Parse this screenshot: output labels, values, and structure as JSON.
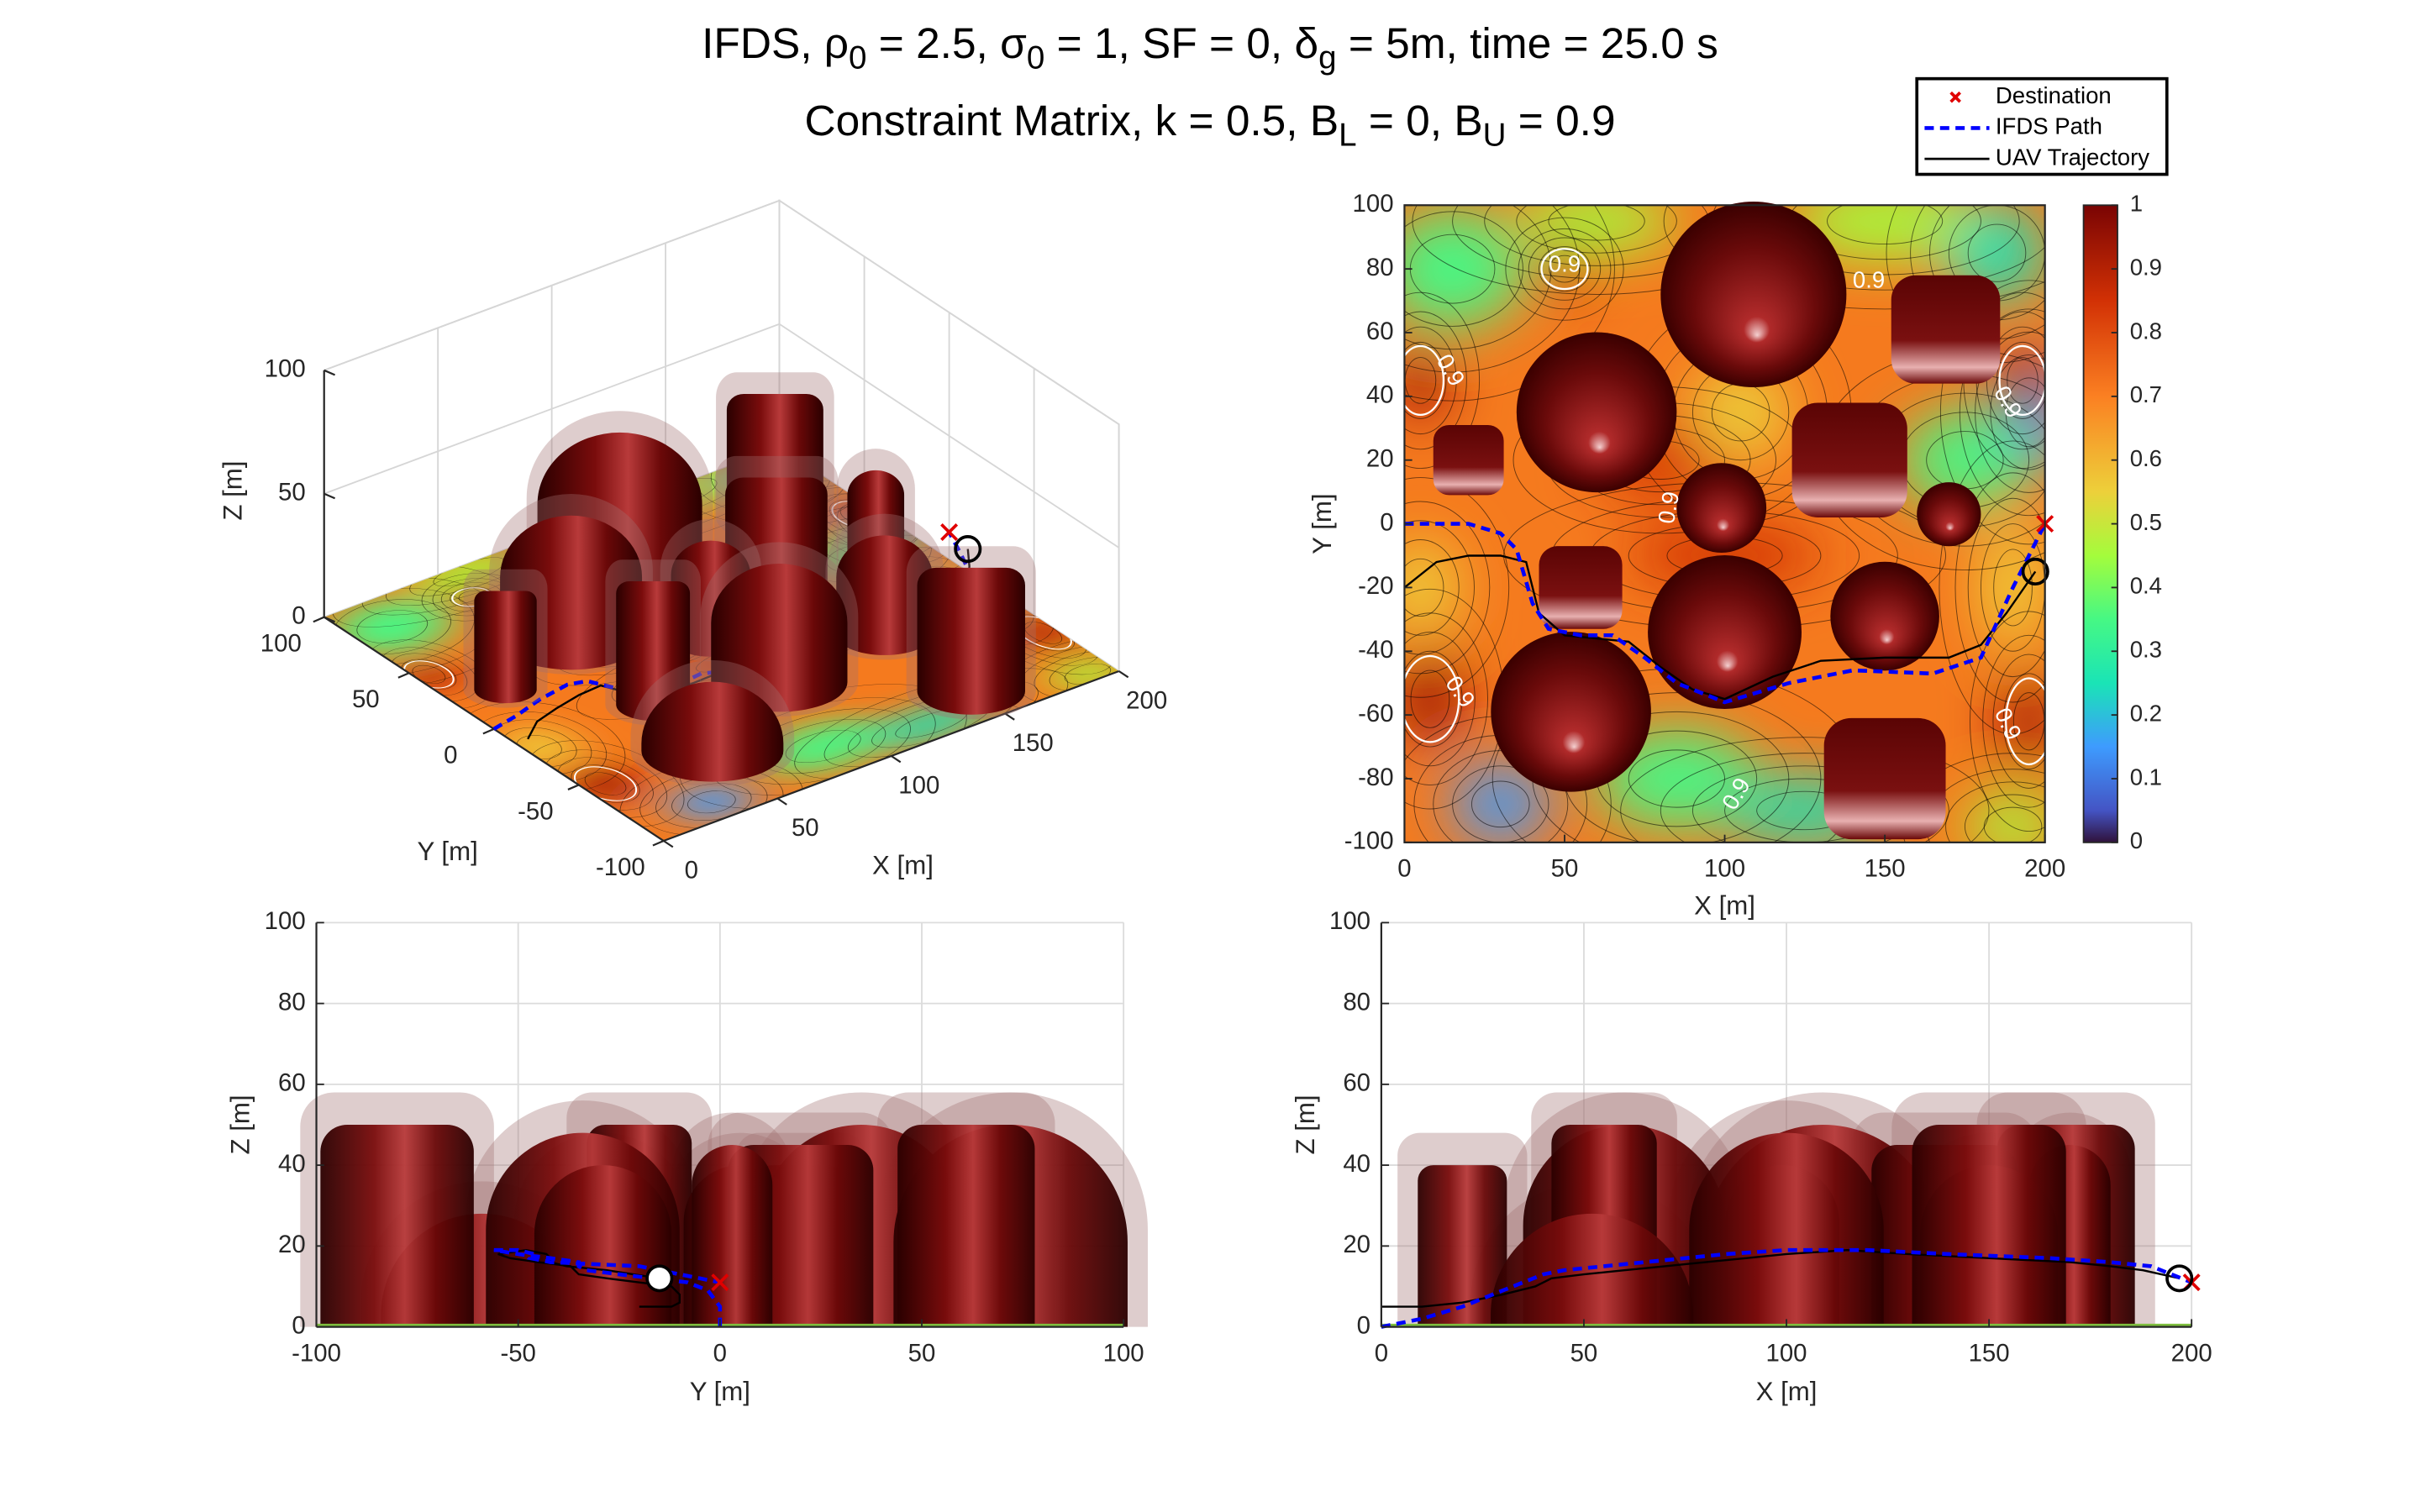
{
  "title": [
    [
      {
        "text": "IFDS, ρ"
      },
      {
        "text": "0",
        "sub": true
      },
      {
        "text": " = 2.5, σ"
      },
      {
        "text": "0",
        "sub": true
      },
      {
        "text": " = 1, SF = 0, δ"
      },
      {
        "text": "g",
        "sub": true
      },
      {
        "text": " = 5m, time = 25.0 s"
      }
    ],
    [
      {
        "text": "Constraint Matrix, k = 0.5, B"
      },
      {
        "text": "L",
        "sub": true
      },
      {
        "text": " = 0, B"
      },
      {
        "text": "U",
        "sub": true
      },
      {
        "text": " = 0.9"
      }
    ]
  ],
  "legend": [
    {
      "name": "Destination",
      "color": "#e00000",
      "marker": "x"
    },
    {
      "name": "IFDS Path",
      "color": "#0000ff",
      "dash": true
    },
    {
      "name": "UAV Trajectory",
      "color": "#000000"
    }
  ],
  "scene": {
    "obstacles": [
      {
        "x": 109,
        "y": 72,
        "r": 29,
        "h": 50,
        "shape": "sphere"
      },
      {
        "x": 169,
        "y": 61,
        "r": 17,
        "h": 50,
        "shape": "box"
      },
      {
        "x": 60,
        "y": 35,
        "r": 25,
        "h": 50,
        "shape": "sphere"
      },
      {
        "x": 20,
        "y": 20,
        "r": 11,
        "h": 40,
        "shape": "box"
      },
      {
        "x": 139,
        "y": 20,
        "r": 18,
        "h": 45,
        "shape": "box"
      },
      {
        "x": 99,
        "y": 5,
        "r": 14,
        "h": 40,
        "shape": "sphere"
      },
      {
        "x": 170,
        "y": 3,
        "r": 10,
        "h": 45,
        "shape": "sphere"
      },
      {
        "x": 55,
        "y": -20,
        "r": 13,
        "h": 50,
        "shape": "box"
      },
      {
        "x": 100,
        "y": -34,
        "r": 24,
        "h": 48,
        "shape": "sphere"
      },
      {
        "x": 150,
        "y": -29,
        "r": 17,
        "h": 40,
        "shape": "sphere"
      },
      {
        "x": 52,
        "y": -59,
        "r": 25,
        "h": 28,
        "shape": "sphere"
      },
      {
        "x": 150,
        "y": -80,
        "r": 19,
        "h": 50,
        "shape": "box"
      }
    ],
    "ifds_path": {
      "x": [
        0,
        10,
        20,
        30,
        35,
        40,
        45,
        55,
        65,
        75,
        85,
        100,
        120,
        140,
        165,
        180,
        190,
        200
      ],
      "y": [
        0,
        0,
        0,
        -3,
        -8,
        -25,
        -33,
        -35,
        -35,
        -42,
        -50,
        -56,
        -50,
        -46,
        -47,
        -42,
        -20,
        0
      ],
      "z": [
        0,
        2,
        5,
        9,
        11,
        13,
        14,
        15,
        16,
        17,
        18,
        19,
        19,
        18,
        17,
        16,
        15,
        11
      ]
    },
    "trajectory": {
      "x": [
        0,
        10,
        20,
        30,
        38,
        42,
        50,
        60,
        70,
        80,
        90,
        100,
        115,
        130,
        150,
        170,
        180,
        188,
        197
      ],
      "y": [
        -20,
        -12,
        -10,
        -10,
        -12,
        -28,
        -35,
        -36,
        -37,
        -45,
        -52,
        -55,
        -48,
        -43,
        -42,
        -42,
        -38,
        -28,
        -15
      ],
      "z": [
        5,
        5,
        6,
        8,
        10,
        12,
        13,
        14,
        15,
        16,
        17,
        18,
        19,
        18,
        17,
        16,
        15,
        14,
        12
      ]
    },
    "destination": {
      "x": 200,
      "y": 0,
      "z": 11
    },
    "uav": {
      "x": 197,
      "y": -15,
      "z": 12
    }
  },
  "chart_data": [
    {
      "type": "3d",
      "xlabel": "X [m]",
      "ylabel": "Y [m]",
      "zlabel": "Z [m]",
      "xlim": [
        0,
        200
      ],
      "ylim": [
        -100,
        100
      ],
      "zlim": [
        0,
        100
      ],
      "xticks": [
        0,
        50,
        100,
        150,
        200
      ],
      "yticks": [
        -100,
        -50,
        0,
        50,
        100
      ],
      "zticks": [
        0,
        50,
        100
      ],
      "grid": true
    },
    {
      "type": "contour",
      "xlabel": "X [m]",
      "ylabel": "Y [m]",
      "xlim": [
        0,
        200
      ],
      "ylim": [
        -100,
        100
      ],
      "xticks": [
        0,
        50,
        100,
        150,
        200
      ],
      "yticks": [
        -100,
        -80,
        -60,
        -40,
        -20,
        0,
        20,
        40,
        60,
        80,
        100
      ],
      "clim": [
        0,
        1
      ],
      "cticks": [
        0,
        0.1,
        0.2,
        0.3,
        0.4,
        0.5,
        0.6,
        0.7,
        0.8,
        0.9,
        1
      ],
      "contour_label": 0.9
    },
    {
      "type": "side",
      "view": "y",
      "xlabel": "Y [m]",
      "ylabel": "Z [m]",
      "xlim": [
        -100,
        100
      ],
      "ylim": [
        0,
        100
      ],
      "xticks": [
        -100,
        -50,
        0,
        50,
        100
      ],
      "yticks": [
        0,
        20,
        40,
        60,
        80,
        100
      ],
      "grid": true
    },
    {
      "type": "side",
      "view": "x",
      "xlabel": "X [m]",
      "ylabel": "Z [m]",
      "xlim": [
        0,
        200
      ],
      "ylim": [
        0,
        100
      ],
      "xticks": [
        0,
        50,
        100,
        150,
        200
      ],
      "yticks": [
        0,
        20,
        40,
        60,
        80,
        100
      ],
      "grid": true
    }
  ]
}
